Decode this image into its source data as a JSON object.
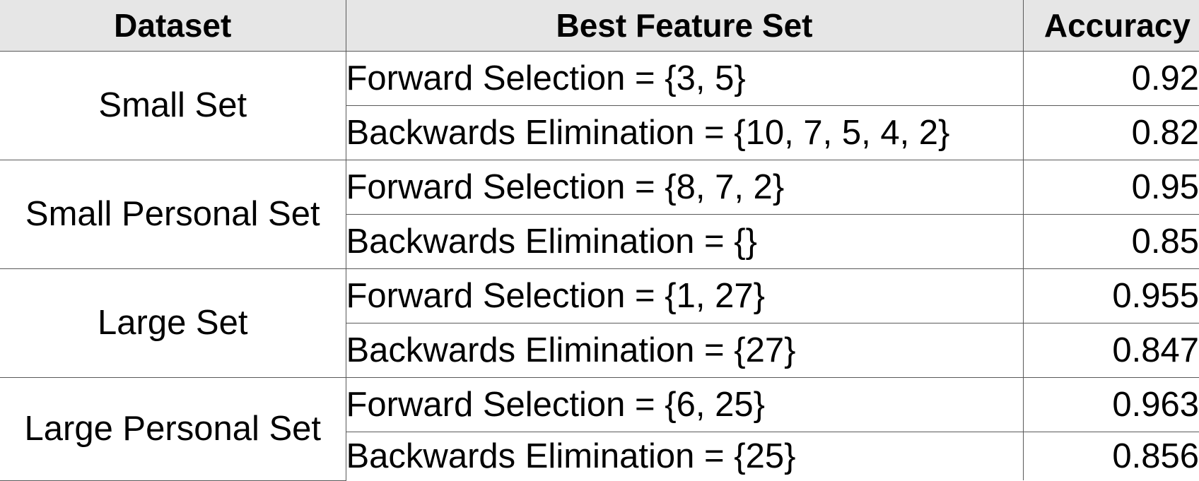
{
  "table": {
    "headers": [
      "Dataset",
      "Best Feature Set",
      "Accuracy"
    ],
    "groups": [
      {
        "dataset": "Small Set",
        "rows": [
          {
            "feature_set": "Forward Selection = {3, 5}",
            "accuracy": "0.92"
          },
          {
            "feature_set": "Backwards Elimination = {10, 7, 5, 4, 2}",
            "accuracy": "0.82"
          }
        ]
      },
      {
        "dataset": "Small Personal Set",
        "rows": [
          {
            "feature_set": "Forward Selection = {8, 7, 2}",
            "accuracy": "0.95"
          },
          {
            "feature_set": "Backwards Elimination = {}",
            "accuracy": "0.85"
          }
        ]
      },
      {
        "dataset": "Large Set",
        "rows": [
          {
            "feature_set": "Forward Selection = {1, 27}",
            "accuracy": "0.955"
          },
          {
            "feature_set": "Backwards Elimination = {27}",
            "accuracy": "0.847"
          }
        ]
      },
      {
        "dataset": "Large Personal Set",
        "rows": [
          {
            "feature_set": "Forward Selection = {6, 25}",
            "accuracy": "0.963"
          },
          {
            "feature_set": "Backwards Elimination = {25}",
            "accuracy": "0.856"
          }
        ]
      }
    ]
  }
}
